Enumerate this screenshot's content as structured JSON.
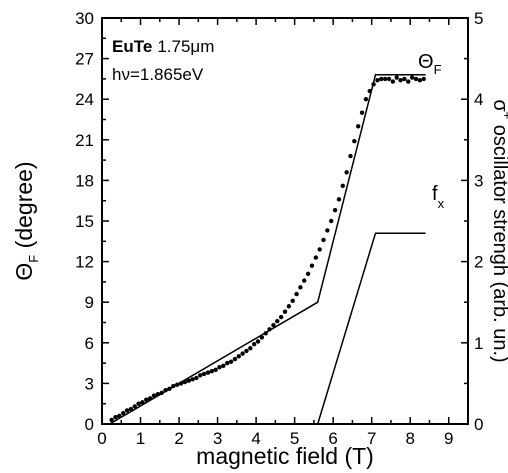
{
  "chart_data": {
    "type": "scatter",
    "xlabel": "magnetic field (T)",
    "ylabel": "Θ",
    "ylabel_sub": "F",
    "ylabel_rest": " (degree)",
    "y2label_sigma": "σ",
    "y2label_sup": "+",
    "y2label_rest": " oscillator strengh (arb. un.)",
    "xlim": [
      0,
      9.5
    ],
    "ylim": [
      0,
      30
    ],
    "y2lim": [
      0,
      5
    ],
    "xticks": [
      "0",
      "1",
      "2",
      "3",
      "4",
      "5",
      "6",
      "7",
      "8",
      "9"
    ],
    "yticks": [
      "0",
      "3",
      "6",
      "9",
      "12",
      "15",
      "18",
      "21",
      "24",
      "27",
      "30"
    ],
    "y2ticks": [
      "0",
      "1",
      "2",
      "3",
      "4",
      "5"
    ],
    "annotation": {
      "material": "EuTe",
      "thickness": "1.75μm",
      "photon_energy": "hν=1.865eV"
    },
    "label_theta": "Θ",
    "label_theta_sub": "F",
    "label_f": "f",
    "label_f_sub": "x",
    "series": [
      {
        "marker": "dots",
        "axis": "left",
        "x": [
          0.25,
          0.35,
          0.45,
          0.55,
          0.65,
          0.75,
          0.85,
          0.95,
          1.05,
          1.15,
          1.25,
          1.35,
          1.45,
          1.55,
          1.65,
          1.75,
          1.85,
          1.95,
          2.05,
          2.15,
          2.25,
          2.35,
          2.45,
          2.55,
          2.65,
          2.75,
          2.85,
          2.95,
          3.05,
          3.15,
          3.25,
          3.35,
          3.45,
          3.55,
          3.65,
          3.75,
          3.85,
          3.95,
          4.05,
          4.15,
          4.25,
          4.35,
          4.45,
          4.55,
          4.65,
          4.75,
          4.85,
          4.95,
          5.05,
          5.15,
          5.25,
          5.35,
          5.45,
          5.55,
          5.65,
          5.75,
          5.85,
          5.95,
          6.05,
          6.15,
          6.25,
          6.35,
          6.45,
          6.55,
          6.65,
          6.75,
          6.85,
          6.95,
          7.05,
          7.15,
          7.25,
          7.35,
          7.45,
          7.55,
          7.65,
          7.75,
          7.85,
          7.95,
          8.05,
          8.15,
          8.25,
          8.35
        ],
        "y": [
          0.3,
          0.5,
          0.6,
          0.8,
          1.0,
          1.1,
          1.3,
          1.5,
          1.6,
          1.8,
          1.9,
          2.1,
          2.2,
          2.3,
          2.5,
          2.6,
          2.8,
          2.9,
          3.0,
          3.1,
          3.2,
          3.3,
          3.4,
          3.6,
          3.7,
          3.8,
          3.9,
          4.0,
          4.2,
          4.3,
          4.5,
          4.6,
          4.8,
          5.0,
          5.2,
          5.4,
          5.6,
          5.9,
          6.1,
          6.4,
          6.7,
          7.0,
          7.3,
          7.6,
          7.9,
          8.3,
          8.7,
          9.1,
          9.6,
          10.1,
          10.6,
          11.1,
          11.7,
          12.3,
          12.9,
          13.6,
          14.3,
          15.0,
          15.8,
          16.6,
          17.6,
          18.6,
          19.8,
          20.9,
          22.0,
          23.0,
          24.0,
          24.6,
          25.1,
          25.4,
          25.5,
          25.5,
          25.5,
          25.3,
          25.6,
          25.4,
          25.5,
          25.3,
          25.6,
          25.5,
          25.4,
          25.5
        ]
      },
      {
        "marker": "line",
        "axis": "left",
        "x": [
          0.2,
          5.6,
          7.1,
          8.4
        ],
        "y": [
          0,
          9.0,
          25.8,
          25.8
        ]
      },
      {
        "marker": "line",
        "axis": "right",
        "x": [
          5.6,
          7.1,
          8.4
        ],
        "y": [
          0,
          2.35,
          2.35
        ]
      }
    ]
  }
}
